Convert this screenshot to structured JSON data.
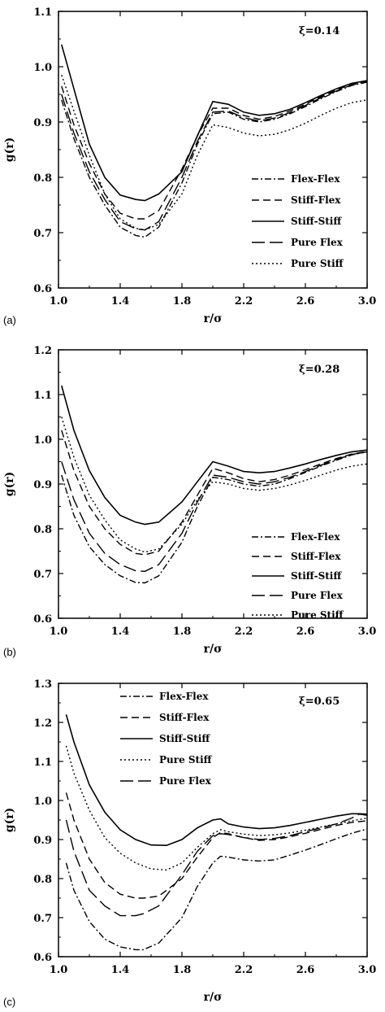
{
  "chart_data": [
    {
      "type": "line",
      "panel_label": "(a)",
      "annotation": "ξ=0.14",
      "xlabel": "r/σ",
      "ylabel": "g(r)",
      "xlim": [
        1.0,
        3.0
      ],
      "ylim": [
        0.6,
        1.1
      ],
      "xticks": [
        "1.0",
        "1.4",
        "1.8",
        "2.2",
        "2.6",
        "3.0"
      ],
      "yticks": [
        "0.6",
        "0.7",
        "0.8",
        "0.9",
        "1.0",
        "1.1"
      ],
      "legend_position": "right-middle",
      "series": [
        {
          "name": "Flex-Flex",
          "dash": "dashdot",
          "x": [
            1.02,
            1.1,
            1.2,
            1.3,
            1.4,
            1.5,
            1.56,
            1.65,
            1.8,
            1.9,
            2.0,
            2.1,
            2.2,
            2.3,
            2.4,
            2.5,
            2.6,
            2.7,
            2.8,
            2.9,
            3.0
          ],
          "y": [
            0.94,
            0.87,
            0.8,
            0.75,
            0.71,
            0.695,
            0.692,
            0.71,
            0.79,
            0.86,
            0.915,
            0.918,
            0.905,
            0.9,
            0.905,
            0.915,
            0.928,
            0.942,
            0.955,
            0.966,
            0.972
          ]
        },
        {
          "name": "Stiff-Flex",
          "dash": "dash",
          "x": [
            1.02,
            1.1,
            1.2,
            1.3,
            1.4,
            1.5,
            1.56,
            1.65,
            1.8,
            1.9,
            2.0,
            2.1,
            2.2,
            2.3,
            2.4,
            2.5,
            2.6,
            2.7,
            2.8,
            2.9,
            3.0
          ],
          "y": [
            0.965,
            0.895,
            0.825,
            0.77,
            0.735,
            0.725,
            0.725,
            0.74,
            0.815,
            0.875,
            0.925,
            0.925,
            0.912,
            0.905,
            0.91,
            0.92,
            0.932,
            0.946,
            0.958,
            0.968,
            0.974
          ]
        },
        {
          "name": "Stiff-Stiff",
          "dash": "solid",
          "x": [
            1.02,
            1.1,
            1.2,
            1.3,
            1.4,
            1.5,
            1.56,
            1.65,
            1.8,
            1.9,
            2.0,
            2.1,
            2.2,
            2.3,
            2.4,
            2.5,
            2.6,
            2.7,
            2.8,
            2.9,
            3.0
          ],
          "y": [
            1.04,
            0.96,
            0.86,
            0.8,
            0.768,
            0.76,
            0.758,
            0.77,
            0.81,
            0.875,
            0.937,
            0.932,
            0.918,
            0.912,
            0.915,
            0.923,
            0.935,
            0.948,
            0.96,
            0.97,
            0.975
          ]
        },
        {
          "name": "Pure Flex",
          "dash": "longdash",
          "x": [
            1.02,
            1.1,
            1.2,
            1.3,
            1.4,
            1.5,
            1.56,
            1.65,
            1.8,
            1.9,
            2.0,
            2.1,
            2.2,
            2.3,
            2.4,
            2.5,
            2.6,
            2.7,
            2.8,
            2.9,
            3.0
          ],
          "y": [
            0.95,
            0.88,
            0.81,
            0.76,
            0.72,
            0.707,
            0.705,
            0.72,
            0.8,
            0.865,
            0.918,
            0.92,
            0.908,
            0.902,
            0.907,
            0.917,
            0.93,
            0.944,
            0.956,
            0.967,
            0.973
          ]
        },
        {
          "name": "Pure Stiff",
          "dash": "dot",
          "x": [
            1.02,
            1.1,
            1.2,
            1.3,
            1.4,
            1.5,
            1.56,
            1.65,
            1.8,
            1.9,
            2.0,
            2.1,
            2.2,
            2.3,
            2.4,
            2.5,
            2.6,
            2.7,
            2.8,
            2.9,
            3.0
          ],
          "y": [
            0.985,
            0.92,
            0.84,
            0.77,
            0.725,
            0.708,
            0.705,
            0.715,
            0.77,
            0.84,
            0.895,
            0.89,
            0.88,
            0.875,
            0.878,
            0.886,
            0.898,
            0.912,
            0.925,
            0.935,
            0.94
          ]
        }
      ]
    },
    {
      "type": "line",
      "panel_label": "(b)",
      "annotation": "ξ=0.28",
      "xlabel": "r/σ",
      "ylabel": "g(r)",
      "xlim": [
        1.0,
        3.0
      ],
      "ylim": [
        0.6,
        1.2
      ],
      "xticks": [
        "1.0",
        "1.4",
        "1.8",
        "2.2",
        "2.6",
        "3.0"
      ],
      "yticks": [
        "0.6",
        "0.7",
        "0.8",
        "0.9",
        "1.0",
        "1.1",
        "1.2"
      ],
      "legend_position": "right-bottom",
      "series": [
        {
          "name": "Flex-Flex",
          "dash": "dashdot",
          "x": [
            1.02,
            1.1,
            1.2,
            1.3,
            1.4,
            1.5,
            1.56,
            1.65,
            1.8,
            1.9,
            2.0,
            2.1,
            2.2,
            2.3,
            2.4,
            2.5,
            2.6,
            2.7,
            2.8,
            2.9,
            3.0
          ],
          "y": [
            0.92,
            0.83,
            0.76,
            0.72,
            0.695,
            0.68,
            0.679,
            0.695,
            0.77,
            0.85,
            0.915,
            0.91,
            0.9,
            0.895,
            0.9,
            0.912,
            0.926,
            0.94,
            0.953,
            0.965,
            0.972
          ]
        },
        {
          "name": "Stiff-Flex",
          "dash": "dash",
          "x": [
            1.02,
            1.1,
            1.2,
            1.3,
            1.4,
            1.5,
            1.56,
            1.65,
            1.8,
            1.9,
            2.0,
            2.1,
            2.2,
            2.3,
            2.4,
            2.5,
            2.6,
            2.7,
            2.8,
            2.9,
            3.0
          ],
          "y": [
            1.02,
            0.93,
            0.85,
            0.8,
            0.765,
            0.745,
            0.742,
            0.75,
            0.815,
            0.875,
            0.935,
            0.925,
            0.912,
            0.905,
            0.91,
            0.92,
            0.932,
            0.945,
            0.957,
            0.967,
            0.973
          ]
        },
        {
          "name": "Stiff-Stiff",
          "dash": "solid",
          "x": [
            1.02,
            1.1,
            1.2,
            1.3,
            1.4,
            1.5,
            1.56,
            1.65,
            1.8,
            1.9,
            2.0,
            2.1,
            2.2,
            2.3,
            2.4,
            2.5,
            2.6,
            2.7,
            2.8,
            2.9,
            3.0
          ],
          "y": [
            1.12,
            1.02,
            0.93,
            0.87,
            0.83,
            0.815,
            0.81,
            0.815,
            0.86,
            0.905,
            0.95,
            0.94,
            0.928,
            0.925,
            0.928,
            0.936,
            0.945,
            0.955,
            0.964,
            0.972,
            0.976
          ]
        },
        {
          "name": "Pure Flex",
          "dash": "longdash",
          "x": [
            1.02,
            1.1,
            1.2,
            1.3,
            1.4,
            1.5,
            1.56,
            1.65,
            1.8,
            1.9,
            2.0,
            2.1,
            2.2,
            2.3,
            2.4,
            2.5,
            2.6,
            2.7,
            2.8,
            2.9,
            3.0
          ],
          "y": [
            0.95,
            0.865,
            0.79,
            0.745,
            0.72,
            0.706,
            0.705,
            0.72,
            0.79,
            0.86,
            0.92,
            0.915,
            0.905,
            0.9,
            0.905,
            0.915,
            0.928,
            0.942,
            0.955,
            0.966,
            0.972
          ]
        },
        {
          "name": "Pure Stiff",
          "dash": "dot",
          "x": [
            1.02,
            1.1,
            1.2,
            1.3,
            1.4,
            1.5,
            1.56,
            1.65,
            1.8,
            1.9,
            2.0,
            2.1,
            2.2,
            2.3,
            2.4,
            2.5,
            2.6,
            2.7,
            2.8,
            2.9,
            3.0
          ],
          "y": [
            1.05,
            0.96,
            0.875,
            0.82,
            0.775,
            0.755,
            0.748,
            0.755,
            0.81,
            0.865,
            0.905,
            0.9,
            0.89,
            0.886,
            0.89,
            0.898,
            0.908,
            0.92,
            0.931,
            0.94,
            0.945
          ]
        }
      ]
    },
    {
      "type": "line",
      "panel_label": "(c)",
      "annotation": "ξ=0.65",
      "xlabel": "r/σ",
      "ylabel": "g(r)",
      "xlim": [
        1.0,
        3.0
      ],
      "ylim": [
        0.6,
        1.3
      ],
      "xticks": [
        "1.0",
        "1.4",
        "1.8",
        "2.2",
        "2.6",
        "3.0"
      ],
      "yticks": [
        "0.6",
        "0.7",
        "0.8",
        "0.9",
        "1.0",
        "1.1",
        "1.2",
        "1.3"
      ],
      "legend_position": "top",
      "series": [
        {
          "name": "Flex-Flex",
          "dash": "dashdot",
          "x": [
            1.05,
            1.1,
            1.2,
            1.3,
            1.4,
            1.5,
            1.55,
            1.65,
            1.8,
            1.9,
            2.0,
            2.05,
            2.1,
            2.2,
            2.3,
            2.4,
            2.5,
            2.6,
            2.7,
            2.8,
            2.9,
            3.0
          ],
          "y": [
            0.84,
            0.77,
            0.69,
            0.645,
            0.625,
            0.618,
            0.618,
            0.635,
            0.7,
            0.78,
            0.84,
            0.857,
            0.855,
            0.848,
            0.845,
            0.848,
            0.86,
            0.873,
            0.887,
            0.902,
            0.916,
            0.927
          ]
        },
        {
          "name": "Stiff-Flex",
          "dash": "dash",
          "x": [
            1.05,
            1.1,
            1.2,
            1.3,
            1.4,
            1.5,
            1.55,
            1.65,
            1.8,
            1.9,
            2.0,
            2.05,
            2.1,
            2.2,
            2.3,
            2.4,
            2.5,
            2.6,
            2.7,
            2.8,
            2.9,
            3.0
          ],
          "y": [
            1.02,
            0.95,
            0.85,
            0.79,
            0.76,
            0.75,
            0.75,
            0.755,
            0.8,
            0.855,
            0.905,
            0.918,
            0.915,
            0.905,
            0.898,
            0.9,
            0.907,
            0.916,
            0.926,
            0.936,
            0.944,
            0.948
          ]
        },
        {
          "name": "Stiff-Stiff",
          "dash": "solid",
          "x": [
            1.05,
            1.1,
            1.2,
            1.3,
            1.4,
            1.5,
            1.6,
            1.7,
            1.8,
            1.9,
            2.0,
            2.05,
            2.1,
            2.2,
            2.3,
            2.4,
            2.5,
            2.6,
            2.7,
            2.8,
            2.9,
            2.95,
            3.0
          ],
          "y": [
            1.22,
            1.15,
            1.04,
            0.97,
            0.925,
            0.9,
            0.886,
            0.885,
            0.9,
            0.93,
            0.95,
            0.953,
            0.94,
            0.932,
            0.928,
            0.93,
            0.936,
            0.944,
            0.952,
            0.96,
            0.966,
            0.966,
            0.965
          ]
        },
        {
          "name": "Pure Stiff",
          "dash": "dot",
          "x": [
            1.05,
            1.1,
            1.2,
            1.3,
            1.4,
            1.5,
            1.6,
            1.7,
            1.8,
            1.9,
            2.0,
            2.05,
            2.1,
            2.2,
            2.3,
            2.4,
            2.5,
            2.6,
            2.7,
            2.8,
            2.9,
            3.0
          ],
          "y": [
            1.14,
            1.07,
            0.975,
            0.905,
            0.865,
            0.84,
            0.825,
            0.822,
            0.84,
            0.88,
            0.915,
            0.925,
            0.92,
            0.914,
            0.91,
            0.912,
            0.917,
            0.924,
            0.932,
            0.94,
            0.948,
            0.955
          ]
        },
        {
          "name": "Pure Flex",
          "dash": "longdash",
          "x": [
            1.05,
            1.1,
            1.2,
            1.3,
            1.4,
            1.5,
            1.55,
            1.65,
            1.8,
            1.9,
            2.0,
            2.05,
            2.1,
            2.2,
            2.3,
            2.4,
            2.5,
            2.6,
            2.7,
            2.8,
            2.9,
            2.95,
            3.0
          ],
          "y": [
            0.95,
            0.87,
            0.77,
            0.73,
            0.705,
            0.705,
            0.71,
            0.73,
            0.81,
            0.87,
            0.91,
            0.915,
            0.913,
            0.905,
            0.9,
            0.903,
            0.91,
            0.92,
            0.93,
            0.94,
            0.955,
            0.965,
            0.962
          ]
        }
      ]
    }
  ]
}
